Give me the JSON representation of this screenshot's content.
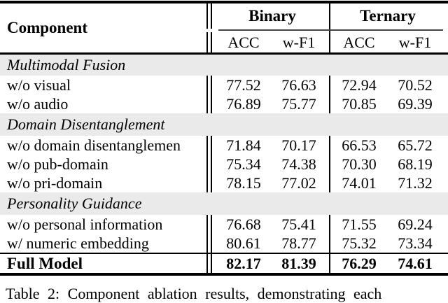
{
  "table": {
    "header": {
      "component_label": "Component",
      "group_binary": "Binary",
      "group_ternary": "Ternary",
      "sub": [
        "ACC",
        "w-F1",
        "ACC",
        "w-F1"
      ]
    },
    "sections": [
      {
        "title": "Multimodal Fusion",
        "rows": [
          {
            "label": "w/o visual",
            "values": [
              "77.52",
              "76.63",
              "72.94",
              "70.52"
            ]
          },
          {
            "label": "w/o audio",
            "values": [
              "76.89",
              "75.77",
              "70.85",
              "69.39"
            ]
          }
        ]
      },
      {
        "title": "Domain Disentanglement",
        "rows": [
          {
            "label": "w/o domain disentanglemen",
            "values": [
              "71.84",
              "70.17",
              "66.53",
              "65.72"
            ]
          },
          {
            "label": "w/o pub-domain",
            "values": [
              "75.34",
              "74.38",
              "70.30",
              "68.19"
            ]
          },
          {
            "label": "w/o pri-domain",
            "values": [
              "78.15",
              "77.02",
              "74.01",
              "71.32"
            ]
          }
        ]
      },
      {
        "title": "Personality Guidance",
        "rows": [
          {
            "label": "w/o personal information",
            "values": [
              "76.68",
              "75.41",
              "71.55",
              "69.24"
            ]
          },
          {
            "label": "w/ numeric embedding",
            "values": [
              "80.61",
              "78.77",
              "75.32",
              "73.34"
            ]
          }
        ]
      }
    ],
    "footer": {
      "label": "Full Model",
      "values": [
        "82.17",
        "81.39",
        "76.29",
        "74.61"
      ]
    },
    "caption": "Table 2: Component ablation results, demonstrating each"
  },
  "chart_data": {
    "type": "table",
    "title": "Table 2: Component ablation results",
    "column_groups": [
      "Binary",
      "Ternary"
    ],
    "columns": [
      "Binary ACC",
      "Binary w-F1",
      "Ternary ACC",
      "Ternary w-F1"
    ],
    "rows": [
      {
        "section": "Multimodal Fusion",
        "label": "w/o visual",
        "values": [
          77.52,
          76.63,
          72.94,
          70.52
        ]
      },
      {
        "section": "Multimodal Fusion",
        "label": "w/o audio",
        "values": [
          76.89,
          75.77,
          70.85,
          69.39
        ]
      },
      {
        "section": "Domain Disentanglement",
        "label": "w/o domain disentanglemen",
        "values": [
          71.84,
          70.17,
          66.53,
          65.72
        ]
      },
      {
        "section": "Domain Disentanglement",
        "label": "w/o pub-domain",
        "values": [
          75.34,
          74.38,
          70.3,
          68.19
        ]
      },
      {
        "section": "Domain Disentanglement",
        "label": "w/o pri-domain",
        "values": [
          78.15,
          77.02,
          74.01,
          71.32
        ]
      },
      {
        "section": "Personality Guidance",
        "label": "w/o personal information",
        "values": [
          76.68,
          75.41,
          71.55,
          69.24
        ]
      },
      {
        "section": "Personality Guidance",
        "label": "w/ numeric embedding",
        "values": [
          80.61,
          78.77,
          75.32,
          73.34
        ]
      },
      {
        "section": "",
        "label": "Full Model",
        "values": [
          82.17,
          81.39,
          76.29,
          74.61
        ]
      }
    ]
  },
  "colors": {
    "section_row_background": "#eaeaea",
    "rule_color": "#000000",
    "cmidrule_color": "#444444",
    "text_color": "#000000",
    "page_background": "#ffffff"
  }
}
